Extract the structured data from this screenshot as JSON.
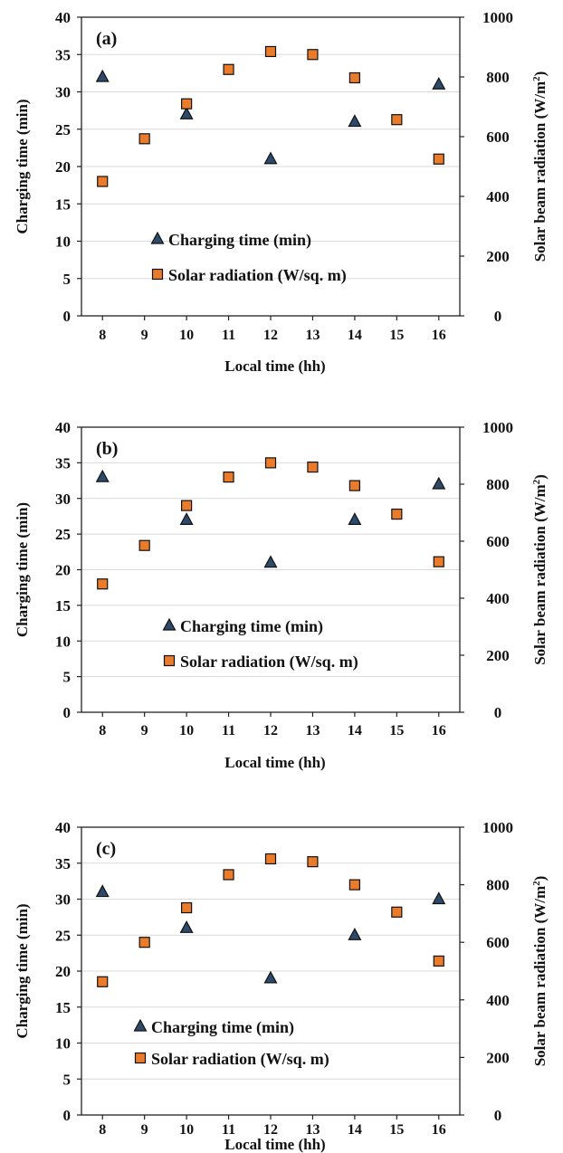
{
  "chart_data": [
    {
      "type": "scatter",
      "panel_label": "(a)",
      "xlabel": "Local time (hh)",
      "ylabel": "Charging time (min)",
      "y2label": "Solar beam radiation (W/m",
      "y2label_sup": "2",
      "y2label_close": ")",
      "xlim": [
        7.5,
        16.5
      ],
      "xticks": [
        8,
        9,
        10,
        11,
        12,
        13,
        14,
        15,
        16
      ],
      "ylim": [
        0,
        40
      ],
      "yticks": [
        0,
        5,
        10,
        15,
        20,
        25,
        30,
        35,
        40
      ],
      "y2lim": [
        0,
        1000
      ],
      "y2ticks": [
        0,
        200,
        400,
        600,
        800,
        1000
      ],
      "grid": true,
      "legend_position": "lower-middle",
      "series": [
        {
          "name": "Charging time (min)",
          "marker": "triangle",
          "color": "#2e4a6b",
          "axis": "left",
          "x": [
            8,
            10,
            12,
            14,
            16
          ],
          "y": [
            32,
            27,
            21,
            26,
            31
          ]
        },
        {
          "name": "Solar radiation (W/sq. m)",
          "marker": "square",
          "color": "#e97b2b",
          "axis": "right",
          "x": [
            8,
            9,
            10,
            11,
            12,
            13,
            14,
            15,
            16
          ],
          "y": [
            450,
            593,
            710,
            825,
            885,
            875,
            797,
            657,
            525
          ]
        }
      ]
    },
    {
      "type": "scatter",
      "panel_label": "(b)",
      "xlabel": "Local time (hh)",
      "ylabel": "Charging time (min)",
      "y2label": "Solar beam radiation (W/m",
      "y2label_sup": "2",
      "y2label_close": ")",
      "xlim": [
        7.5,
        16.5
      ],
      "xticks": [
        8,
        9,
        10,
        11,
        12,
        13,
        14,
        15,
        16
      ],
      "ylim": [
        0,
        40
      ],
      "yticks": [
        0,
        5,
        10,
        15,
        20,
        25,
        30,
        35,
        40
      ],
      "y2lim": [
        0,
        1000
      ],
      "y2ticks": [
        0,
        200,
        400,
        600,
        800,
        1000
      ],
      "grid": true,
      "legend_position": "lower-middle",
      "series": [
        {
          "name": "Charging time (min)",
          "marker": "triangle",
          "color": "#2e4a6b",
          "axis": "left",
          "x": [
            8,
            10,
            12,
            14,
            16
          ],
          "y": [
            33,
            27,
            21,
            27,
            32
          ]
        },
        {
          "name": "Solar radiation (W/sq. m)",
          "marker": "square",
          "color": "#e97b2b",
          "axis": "right",
          "x": [
            8,
            9,
            10,
            11,
            12,
            13,
            14,
            15,
            16
          ],
          "y": [
            450,
            585,
            725,
            825,
            875,
            860,
            795,
            695,
            528
          ]
        }
      ]
    },
    {
      "type": "scatter",
      "panel_label": "(c)",
      "xlabel": "Local time (hh)",
      "ylabel": "Charging time (min)",
      "y2label": "Solar beam radiation (W/m",
      "y2label_sup": "2",
      "y2label_close": ")",
      "xlim": [
        7.5,
        16.5
      ],
      "xticks": [
        8,
        9,
        10,
        11,
        12,
        13,
        14,
        15,
        16
      ],
      "ylim": [
        0,
        40
      ],
      "yticks": [
        0,
        5,
        10,
        15,
        20,
        25,
        30,
        35,
        40
      ],
      "y2lim": [
        0,
        1000
      ],
      "y2ticks": [
        0,
        200,
        400,
        600,
        800,
        1000
      ],
      "grid": true,
      "legend_position": "lower-middle",
      "series": [
        {
          "name": "Charging time (min)",
          "marker": "triangle",
          "color": "#2e4a6b",
          "axis": "left",
          "x": [
            8,
            10,
            12,
            14,
            16
          ],
          "y": [
            31,
            26,
            19,
            25,
            30
          ]
        },
        {
          "name": "Solar radiation (W/sq. m)",
          "marker": "square",
          "color": "#e97b2b",
          "axis": "right",
          "x": [
            8,
            9,
            10,
            11,
            12,
            13,
            14,
            15,
            16
          ],
          "y": [
            463,
            600,
            720,
            835,
            890,
            880,
            800,
            705,
            535
          ]
        }
      ]
    }
  ]
}
